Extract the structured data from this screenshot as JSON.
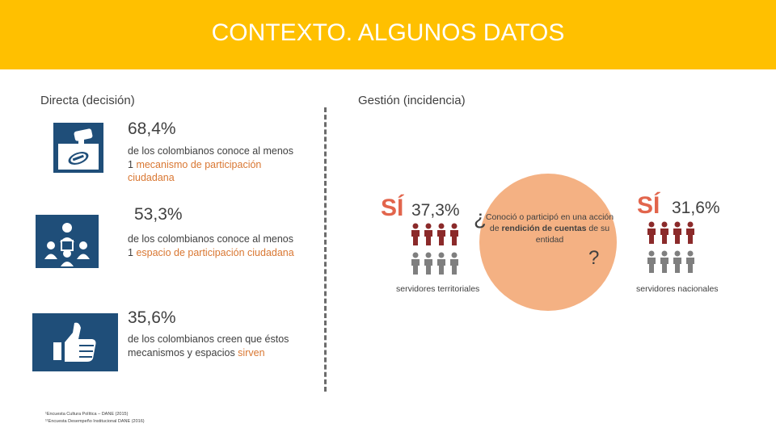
{
  "banner": {
    "title": "CONTEXTO. ALGUNOS DATOS"
  },
  "left": {
    "heading": "Directa (decisión)",
    "stats": [
      {
        "pct": "68,4%",
        "text_before": "de los colombianos conoce al menos 1 ",
        "highlight": "mecanismo de participación ciudadana",
        "text_after": "",
        "icon": "ballot-box-icon"
      },
      {
        "pct": "53,3%",
        "text_before": "de los colombianos conoce al menos 1 ",
        "highlight": "espacio de participación ciudadana",
        "text_after": "",
        "icon": "meeting-people-icon"
      },
      {
        "pct": "35,6%",
        "text_before": "de los colombianos creen que éstos mecanismos y espacios ",
        "highlight": "sirven",
        "text_after": "",
        "icon": "thumbs-up-icon"
      }
    ]
  },
  "right": {
    "heading": "Gestión (incidencia)",
    "territorial": {
      "si": "SÍ",
      "pct": "37,3%",
      "caption": "servidores territoriales"
    },
    "national": {
      "si": "SÍ",
      "pct": "31,6%",
      "caption": "servidores nacionales"
    },
    "question": {
      "open": "¿",
      "text_before": "Conoció o participó en una acción de ",
      "bold": "rendición de cuentas",
      "text_after": " de su entidad",
      "close": "?"
    }
  },
  "footnotes": [
    "¹Encuesta Cultura Política – DANE (2015)",
    "¹¹Encuesta Desempeño Institucional DANE (2016)"
  ],
  "colors": {
    "banner": "#FFC000",
    "icon_bg": "#1F4E79",
    "highlight": "#D97732",
    "si": "#E2654C",
    "circle": "#F4B183",
    "person_red": "#8B2A2A",
    "person_gray": "#7F7F7F"
  }
}
